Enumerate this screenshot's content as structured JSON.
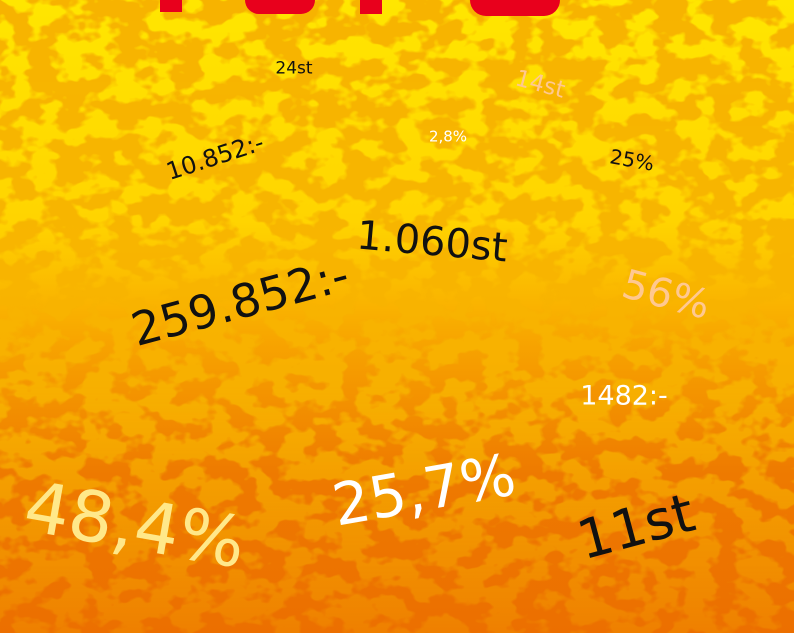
{
  "labels": [
    "24st",
    "14st",
    "10.852:-",
    "2,8%",
    "25%",
    "1.060st",
    "259.852:-",
    "56%",
    "1482:-",
    "48,4%",
    "25,7%",
    "11st"
  ]
}
